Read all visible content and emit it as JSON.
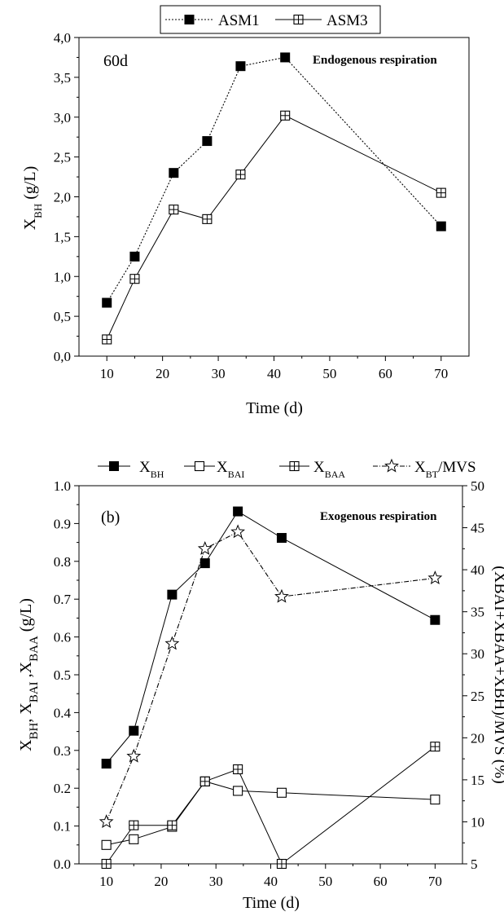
{
  "chart_data": [
    {
      "type": "line",
      "annotation": "60d",
      "title": "Endogenous respiration",
      "xlabel": "Time (d)",
      "ylabel_main": "X",
      "ylabel_sub": "BH",
      "ylabel_unit": " (g/L)",
      "xlim": [
        5,
        75
      ],
      "ylim": [
        0,
        4
      ],
      "x_ticks": [
        10,
        20,
        30,
        40,
        50,
        60,
        70
      ],
      "x_tick_labels": [
        "10",
        "20",
        "30",
        "40",
        "50",
        "60",
        "70"
      ],
      "y_ticks": [
        0,
        0.5,
        1,
        1.5,
        2,
        2.5,
        3,
        3.5,
        4
      ],
      "y_tick_labels": [
        "0,0",
        "0,5",
        "1,0",
        "1,5",
        "2,0",
        "2,5",
        "3,0",
        "3,5",
        "4,0"
      ],
      "legend_position": "top",
      "series": [
        {
          "name": "ASM1",
          "marker": "filled-square",
          "line": "dotted",
          "x": [
            10,
            15,
            22,
            28,
            34,
            42,
            70
          ],
          "y": [
            0.67,
            1.25,
            2.3,
            2.7,
            3.64,
            3.75,
            1.63
          ]
        },
        {
          "name": "ASM3",
          "marker": "crossed-square",
          "line": "solid",
          "x": [
            10,
            15,
            22,
            28,
            34,
            42,
            70
          ],
          "y": [
            0.21,
            0.97,
            1.84,
            1.72,
            2.28,
            3.02,
            2.05
          ]
        }
      ]
    },
    {
      "type": "line",
      "annotation": "(b)",
      "title": "Exogenous respiration",
      "xlabel": "Time (d)",
      "ylabel": "X₀₁, X₀₁ ,X₀₁",
      "ylabel_parts": [
        {
          "main": "X",
          "sub": "BH"
        },
        {
          "main": ", X",
          "sub": "BAI"
        },
        {
          "main": " ,X",
          "sub": "BAA"
        },
        {
          "main": " (g/L)",
          "sub": ""
        }
      ],
      "y2label": "(XBAI+XBAA+XBH)/MVS (%)",
      "xlim": [
        5,
        75
      ],
      "ylim": [
        0,
        1
      ],
      "y2lim": [
        5,
        50
      ],
      "x_ticks": [
        10,
        15,
        20,
        25,
        30,
        35,
        40,
        45,
        50,
        55,
        60,
        65,
        70
      ],
      "x_tick_labels": [
        "10",
        "20",
        "30",
        "40",
        "50",
        "60",
        "70"
      ],
      "y_ticks": [
        0,
        0.1,
        0.2,
        0.3,
        0.4,
        0.5,
        0.6,
        0.7,
        0.8,
        0.9,
        1.0
      ],
      "y_tick_labels": [
        "0.0",
        "0.1",
        "0.2",
        "0.3",
        "0.4",
        "0.5",
        "0.6",
        "0.7",
        "0.8",
        "0.9",
        "1.0"
      ],
      "y2_ticks": [
        5,
        10,
        15,
        20,
        25,
        30,
        35,
        40,
        45,
        50
      ],
      "y2_tick_labels": [
        "5",
        "10",
        "15",
        "20",
        "25",
        "30",
        "35",
        "40",
        "45",
        "50"
      ],
      "legend_position": "top",
      "series": [
        {
          "name_main": "X",
          "name_sub": "BH",
          "marker": "filled-square",
          "line": "solid",
          "axis": "left",
          "x": [
            10,
            15,
            22,
            28,
            34,
            42,
            70
          ],
          "y": [
            0.265,
            0.352,
            0.712,
            0.795,
            0.932,
            0.862,
            0.645
          ]
        },
        {
          "name_main": "X",
          "name_sub": "BAI",
          "marker": "open-square",
          "line": "solid",
          "axis": "left",
          "x": [
            10,
            15,
            22,
            28,
            34,
            42,
            70
          ],
          "y": [
            0.05,
            0.065,
            0.098,
            0.218,
            0.193,
            0.188,
            0.17
          ]
        },
        {
          "name_main": "X",
          "name_sub": "BAA",
          "marker": "crossed-square",
          "line": "solid",
          "axis": "left",
          "x": [
            10,
            15,
            22,
            28,
            34,
            42,
            70
          ],
          "y": [
            0.0,
            0.102,
            0.102,
            0.218,
            0.25,
            0.0,
            0.31
          ]
        },
        {
          "name_main": "X",
          "name_sub": "BT",
          "name_suffix": "/MVS",
          "marker": "star",
          "line": "dashdot",
          "axis": "right",
          "x": [
            10,
            15,
            22,
            28,
            34,
            42,
            70
          ],
          "y": [
            10.0,
            17.8,
            31.2,
            42.5,
            44.5,
            36.8,
            39.0
          ]
        }
      ]
    }
  ]
}
